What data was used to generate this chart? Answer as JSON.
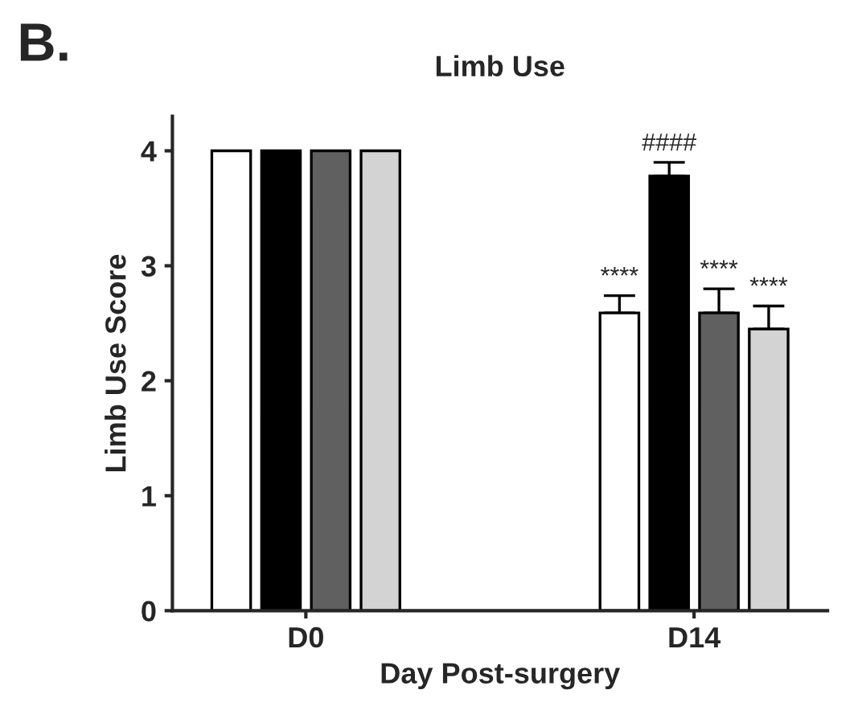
{
  "chart_data": {
    "type": "bar",
    "title": "Limb Use",
    "xlabel": "Day Post-surgery",
    "ylabel": "Limb Use Score",
    "categories": [
      "D0",
      "D14"
    ],
    "series": [
      {
        "color": "#ffffff",
        "values": [
          4,
          2.59
        ],
        "errors": [
          null,
          0.15
        ]
      },
      {
        "color": "#000000",
        "values": [
          4,
          3.78
        ],
        "errors": [
          null,
          0.12
        ]
      },
      {
        "color": "#606060",
        "values": [
          4,
          2.59
        ],
        "errors": [
          null,
          0.21
        ]
      },
      {
        "color": "#d3d3d3",
        "values": [
          4,
          2.45
        ],
        "errors": [
          null,
          0.2
        ]
      }
    ],
    "ylim": [
      0,
      4.3
    ],
    "yticks": [
      0,
      1,
      2,
      3,
      4
    ],
    "grid": false,
    "legend": false,
    "annotations": [
      "B.",
      "****",
      "####",
      "****",
      "****"
    ]
  }
}
